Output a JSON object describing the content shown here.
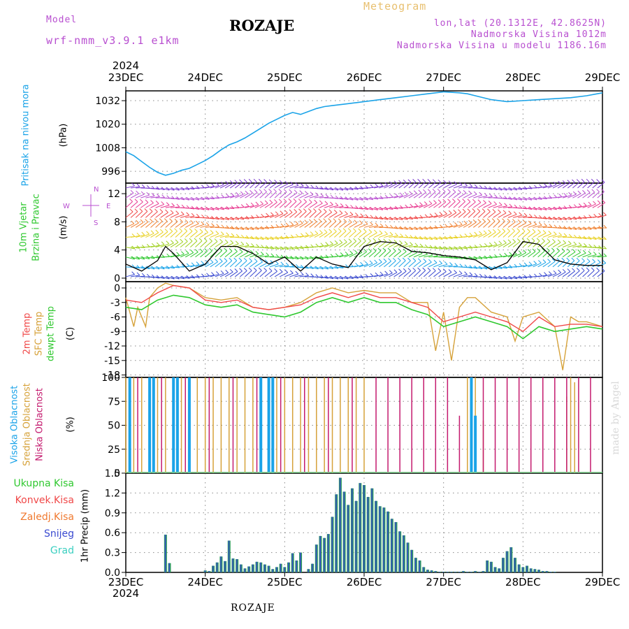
{
  "header": {
    "model_label": "Model",
    "model_name": "wrf-nmm_v3.9.1 e1km",
    "title": "ROZAJE",
    "meteogram": "Meteogram",
    "lonlat": "lon,lat (20.1312E, 42.8625N)",
    "elevation": "Nadmorska Visina 1012m",
    "model_elevation": "Nadmorska Visina u modelu 1186.16m",
    "top_year": "2024",
    "bottom_year": "2024",
    "footer": "ROZAJE",
    "watermark": "made by Angel"
  },
  "colors": {
    "pressure": "#1aa3e8",
    "temp2m": "#f04848",
    "sfc": "#d6a23a",
    "dewpt": "#2fc82f",
    "cloud_high": "#1aa3e8",
    "cloud_mid": "#d6a23a",
    "cloud_low": "#c41a6e",
    "precip_total": "#2a9a5a",
    "precip_snow": "#3a4ad0"
  },
  "wind_compass": {
    "n": "N",
    "e": "E",
    "w": "W",
    "s": "S"
  },
  "labels": {
    "pressure_name": "Pritisak na nivou mora",
    "pressure_unit": "(hPa)",
    "wind_name1": "10m Vjetar",
    "wind_name2": "Brzina i Pravac",
    "wind_unit": "(m/s)",
    "temp_name1": "2m Temp",
    "temp_name2": "SFC Temp",
    "temp_name3": "dewpt Temp",
    "temp_unit": "(C)",
    "cloud_name1": "Visoka Oblacnost",
    "cloud_name2": "Srednja Oblacnost",
    "cloud_name3": "Niska Oblacnost",
    "cloud_unit": "(%)",
    "precip_name": "1hr Precip (mm)",
    "precip_legend": [
      "Ukupna Kisa",
      "Konvek.Kisa",
      "Zaledj.Kisa",
      "Snijeg",
      "Grad"
    ]
  },
  "chart_data": [
    {
      "type": "line",
      "title": "Pritisak na nivou mora",
      "ylabel": "(hPa)",
      "x_ticks": [
        "23DEC",
        "24DEC",
        "25DEC",
        "26DEC",
        "27DEC",
        "28DEC",
        "29DEC"
      ],
      "ylim": [
        990,
        1037
      ],
      "y_ticks": [
        996,
        1008,
        1020,
        1032
      ],
      "series": [
        {
          "name": "Pritisak na nivou mora",
          "x": [
            0,
            0.1,
            0.2,
            0.3,
            0.4,
            0.5,
            0.6,
            0.7,
            0.8,
            0.9,
            1.0,
            1.1,
            1.2,
            1.3,
            1.4,
            1.5,
            1.6,
            1.7,
            1.8,
            1.9,
            2.0,
            2.1,
            2.2,
            2.3,
            2.4,
            2.5,
            2.6,
            2.7,
            2.8,
            2.9,
            3.0,
            3.2,
            3.4,
            3.6,
            3.8,
            4.0,
            4.2,
            4.3,
            4.4,
            4.6,
            4.8,
            5.0,
            5.2,
            5.4,
            5.6,
            5.8,
            6.0
          ],
          "values": [
            1006,
            1004,
            1001,
            998,
            995.5,
            994,
            995,
            996.5,
            997.5,
            999.5,
            1001.5,
            1004,
            1007,
            1009.5,
            1011,
            1013,
            1015.5,
            1018,
            1020.5,
            1022.5,
            1024.5,
            1026,
            1025,
            1026.5,
            1028,
            1029,
            1029.5,
            1030,
            1030.5,
            1031,
            1031.5,
            1032.5,
            1033.5,
            1034.5,
            1035.5,
            1036.5,
            1036,
            1035.5,
            1034.5,
            1032.5,
            1031.5,
            1032,
            1032.5,
            1033,
            1033.5,
            1034.5,
            1036
          ]
        }
      ]
    },
    {
      "type": "line",
      "title": "10m Vjetar Brzina i Pravac",
      "ylabel": "(m/s)",
      "x_ticks": [
        "23DEC",
        "24DEC",
        "25DEC",
        "26DEC",
        "27DEC",
        "28DEC",
        "29DEC"
      ],
      "ylim": [
        -0.5,
        13.5
      ],
      "y_ticks": [
        0,
        4,
        8,
        12
      ],
      "series": [
        {
          "name": "Brzina",
          "x": [
            0,
            0.2,
            0.4,
            0.5,
            0.6,
            0.8,
            1.0,
            1.2,
            1.4,
            1.6,
            1.8,
            2.0,
            2.2,
            2.4,
            2.6,
            2.8,
            3.0,
            3.2,
            3.4,
            3.6,
            3.8,
            4.0,
            4.2,
            4.4,
            4.6,
            4.8,
            5.0,
            5.2,
            5.4,
            5.6,
            5.8,
            6.0
          ],
          "values": [
            2,
            1,
            2.5,
            4.5,
            3.5,
            1,
            2,
            4.5,
            4.5,
            3.5,
            2,
            3,
            1,
            3,
            2,
            1.5,
            4.5,
            5.2,
            5,
            3.8,
            3.6,
            3.2,
            3,
            2.6,
            1.2,
            2.2,
            5.2,
            4.8,
            2.6,
            2,
            1.8,
            1.8
          ]
        }
      ]
    },
    {
      "type": "line",
      "title": "2m Temp / SFC Temp / dewpt Temp",
      "ylabel": "(C)",
      "x_ticks": [
        "23DEC",
        "24DEC",
        "25DEC",
        "26DEC",
        "27DEC",
        "28DEC",
        "29DEC"
      ],
      "ylim": [
        -18.5,
        1.3
      ],
      "y_ticks": [
        0,
        -3,
        -6,
        -9,
        -12,
        -15,
        -18
      ],
      "series": [
        {
          "name": "2m Temp",
          "x": [
            0,
            0.2,
            0.4,
            0.6,
            0.8,
            1.0,
            1.2,
            1.4,
            1.6,
            1.8,
            2.0,
            2.2,
            2.4,
            2.6,
            2.8,
            3.0,
            3.2,
            3.4,
            3.6,
            3.8,
            4.0,
            4.2,
            4.4,
            4.6,
            4.8,
            5.0,
            5.2,
            5.4,
            5.6,
            5.8,
            6.0
          ],
          "values": [
            -2.5,
            -3,
            -1,
            0.5,
            0,
            -2.5,
            -3,
            -2.5,
            -4,
            -4.5,
            -4,
            -3.5,
            -2,
            -1,
            -2,
            -1,
            -2,
            -2,
            -3,
            -4,
            -7,
            -6,
            -5,
            -6,
            -7,
            -9,
            -6,
            -8,
            -7.5,
            -7.5,
            -8
          ]
        },
        {
          "name": "SFC Temp",
          "x": [
            0,
            0.1,
            0.15,
            0.25,
            0.3,
            0.4,
            0.5,
            0.6,
            0.8,
            1.0,
            1.2,
            1.4,
            1.6,
            1.8,
            2.0,
            2.2,
            2.4,
            2.6,
            2.8,
            3.0,
            3.2,
            3.4,
            3.6,
            3.8,
            3.9,
            4.0,
            4.1,
            4.2,
            4.3,
            4.4,
            4.6,
            4.8,
            4.9,
            5.0,
            5.2,
            5.4,
            5.5,
            5.6,
            5.7,
            5.8,
            6.0
          ],
          "values": [
            -2,
            -8,
            -4,
            -8,
            -2,
            0,
            1,
            0.5,
            0,
            -2,
            -2.5,
            -2,
            -4,
            -4.5,
            -4,
            -3,
            -1,
            0,
            -1,
            -0.5,
            -1,
            -1,
            -3,
            -3,
            -13,
            -5,
            -15,
            -4,
            -2,
            -2,
            -5,
            -6,
            -11,
            -6,
            -5,
            -8,
            -17,
            -6,
            -7,
            -7,
            -8
          ]
        },
        {
          "name": "dewpt Temp",
          "x": [
            0,
            0.2,
            0.4,
            0.6,
            0.8,
            1.0,
            1.2,
            1.4,
            1.6,
            1.8,
            2.0,
            2.2,
            2.4,
            2.6,
            2.8,
            3.0,
            3.2,
            3.4,
            3.6,
            3.8,
            4.0,
            4.2,
            4.4,
            4.6,
            4.8,
            5.0,
            5.2,
            5.4,
            5.6,
            5.8,
            6.0
          ],
          "values": [
            -4,
            -4.5,
            -2.5,
            -1.5,
            -2,
            -3.5,
            -4,
            -3.5,
            -5,
            -5.5,
            -6,
            -5,
            -3,
            -2,
            -3,
            -2,
            -3,
            -3,
            -4.5,
            -5.5,
            -8,
            -7,
            -6,
            -7,
            -8,
            -10.5,
            -8,
            -9,
            -8.5,
            -8,
            -8.5
          ]
        }
      ]
    },
    {
      "type": "bar",
      "title": "Visoka / Srednja / Niska Oblacnost",
      "ylabel": "(%)",
      "x_ticks": [
        "23DEC",
        "24DEC",
        "25DEC",
        "26DEC",
        "27DEC",
        "28DEC",
        "29DEC"
      ],
      "ylim": [
        0,
        100
      ],
      "y_ticks": [
        0,
        25,
        50,
        75,
        100
      ],
      "series": [
        {
          "name": "Visoka Oblacnost",
          "x": [
            0.05,
            0.3,
            0.35,
            0.6,
            0.65,
            0.8,
            1.7,
            1.8,
            1.85,
            4.35,
            4.4
          ],
          "values": [
            100,
            100,
            100,
            100,
            100,
            100,
            100,
            100,
            100,
            100,
            60
          ]
        },
        {
          "name": "Srednja Oblacnost",
          "x": [
            0,
            0.1,
            0.2,
            0.3,
            0.4,
            0.5,
            0.6,
            0.7,
            0.8,
            0.9,
            1.0,
            1.1,
            1.2,
            1.3,
            1.4,
            1.5,
            1.6,
            1.7,
            1.8,
            1.9,
            2.0,
            2.1,
            2.2,
            2.3,
            2.4,
            2.5,
            2.6,
            2.7,
            2.8,
            2.9,
            3.0,
            4.3,
            4.4,
            4.5,
            5.55,
            5.6,
            5.65
          ],
          "values": [
            100,
            100,
            100,
            100,
            100,
            100,
            100,
            100,
            100,
            100,
            100,
            100,
            100,
            100,
            100,
            100,
            100,
            100,
            100,
            100,
            100,
            100,
            100,
            100,
            100,
            100,
            100,
            100,
            100,
            100,
            100,
            100,
            100,
            55,
            80,
            100,
            95
          ]
        },
        {
          "name": "Niska Oblacnost",
          "x": [
            0.15,
            0.45,
            0.75,
            1.05,
            1.35,
            1.65,
            1.95,
            2.25,
            2.55,
            2.85,
            3.15,
            3.3,
            3.45,
            3.6,
            3.75,
            3.9,
            4.05,
            4.2,
            4.5,
            4.65,
            4.8,
            4.95,
            5.1,
            5.25,
            5.4,
            5.55,
            5.7,
            5.85
          ],
          "values": [
            100,
            100,
            100,
            100,
            100,
            100,
            100,
            100,
            100,
            100,
            100,
            100,
            100,
            100,
            100,
            100,
            100,
            60,
            100,
            100,
            100,
            100,
            100,
            100,
            100,
            100,
            100,
            100
          ]
        }
      ]
    },
    {
      "type": "bar",
      "title": "1hr Precip",
      "ylabel": "(mm)",
      "x_ticks": [
        "23DEC",
        "24DEC",
        "25DEC",
        "26DEC",
        "27DEC",
        "28DEC",
        "29DEC"
      ],
      "ylim": [
        0,
        1.5
      ],
      "y_ticks": [
        0,
        0.3,
        0.6,
        0.9,
        1.2,
        1.5
      ],
      "series": [
        {
          "name": "Ukupna Kisa",
          "x": [
            0.5,
            0.55,
            1.0,
            1.05,
            1.1,
            1.15,
            1.2,
            1.25,
            1.3,
            1.35,
            1.4,
            1.45,
            1.5,
            1.55,
            1.6,
            1.65,
            1.7,
            1.75,
            1.8,
            1.85,
            1.9,
            1.95,
            2.0,
            2.05,
            2.1,
            2.15,
            2.2,
            2.3,
            2.35,
            2.4,
            2.45,
            2.5,
            2.55,
            2.6,
            2.65,
            2.7,
            2.75,
            2.8,
            2.85,
            2.9,
            2.95,
            3.0,
            3.05,
            3.1,
            3.15,
            3.2,
            3.25,
            3.3,
            3.35,
            3.4,
            3.45,
            3.5,
            3.55,
            3.6,
            3.65,
            3.7,
            3.75,
            3.8,
            3.85,
            3.9,
            3.95,
            4.0,
            4.05,
            4.1,
            4.15,
            4.2,
            4.25,
            4.3,
            4.35,
            4.4,
            4.45,
            4.5,
            4.55,
            4.6,
            4.65,
            4.7,
            4.75,
            4.8,
            4.85,
            4.9,
            4.95,
            5.0,
            5.05,
            5.1,
            5.15,
            5.2,
            5.25,
            5.3,
            5.35,
            5.4
          ],
          "values": [
            0.57,
            0.14,
            0.03,
            0.02,
            0.1,
            0.15,
            0.24,
            0.17,
            0.48,
            0.21,
            0.2,
            0.12,
            0.06,
            0.09,
            0.12,
            0.16,
            0.15,
            0.12,
            0.1,
            0.05,
            0.08,
            0.13,
            0.08,
            0.15,
            0.29,
            0.18,
            0.3,
            0.05,
            0.13,
            0.42,
            0.55,
            0.52,
            0.58,
            0.84,
            1.18,
            1.43,
            1.22,
            1.02,
            1.27,
            1.08,
            1.35,
            1.32,
            1.14,
            1.27,
            1.08,
            1.0,
            0.98,
            0.92,
            0.81,
            0.76,
            0.62,
            0.56,
            0.45,
            0.34,
            0.22,
            0.18,
            0.08,
            0.04,
            0.03,
            0.02,
            0.01,
            0.01,
            0.01,
            0.01,
            0.01,
            0.01,
            0.02,
            0.01,
            0.01,
            0.02,
            0.01,
            0.02,
            0.18,
            0.16,
            0.08,
            0.06,
            0.22,
            0.32,
            0.38,
            0.22,
            0.12,
            0.08,
            0.1,
            0.06,
            0.05,
            0.04,
            0.02,
            0.02,
            0.01,
            0.01
          ]
        }
      ]
    }
  ]
}
